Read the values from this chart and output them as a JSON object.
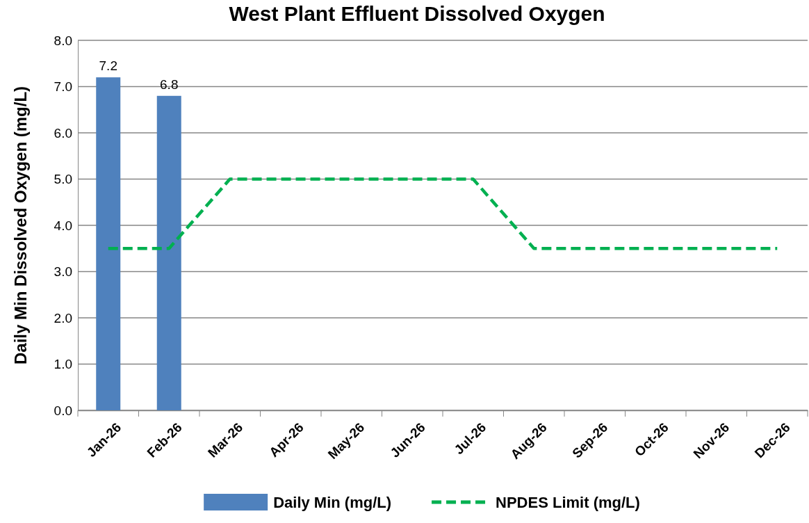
{
  "chart_data": {
    "type": "bar",
    "title": "West Plant Effluent Dissolved Oxygen",
    "ylabel": "Daily Min Dissolved Oxygen (mg/L)",
    "categories": [
      "Jan-26",
      "Feb-26",
      "Mar-26",
      "Apr-26",
      "May-26",
      "Jun-26",
      "Jul-26",
      "Aug-26",
      "Sep-26",
      "Oct-26",
      "Nov-26",
      "Dec-26"
    ],
    "series": [
      {
        "name": "Daily Min (mg/L)",
        "color": "#4f81bd",
        "values": [
          7.2,
          6.8,
          null,
          null,
          null,
          null,
          null,
          null,
          null,
          null,
          null,
          null
        ],
        "value_labels": [
          "7.2",
          "6.8",
          null,
          null,
          null,
          null,
          null,
          null,
          null,
          null,
          null,
          null
        ]
      },
      {
        "name": "NPDES Limit (mg/L)",
        "type": "line",
        "color": "#00b050",
        "line_style": "dashed",
        "marker": "none",
        "values": [
          3.5,
          3.5,
          5,
          5,
          5,
          5,
          5,
          3.5,
          3.5,
          3.5,
          3.5,
          3.5
        ]
      }
    ],
    "ylim": [
      0,
      8
    ],
    "yticks": [
      {
        "value": 0,
        "label": "0.0"
      },
      {
        "value": 1,
        "label": "1.0"
      },
      {
        "value": 2,
        "label": "2.0"
      },
      {
        "value": 3,
        "label": "3.0"
      },
      {
        "value": 4,
        "label": "4.0"
      },
      {
        "value": 5,
        "label": "5.0"
      },
      {
        "value": 6,
        "label": "6.0"
      },
      {
        "value": 7,
        "label": "7.0"
      },
      {
        "value": 8,
        "label": "8.0"
      }
    ],
    "grid": "y",
    "legend": "bottom"
  }
}
